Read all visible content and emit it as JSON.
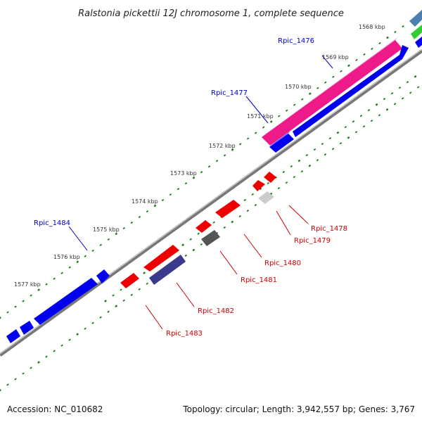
{
  "title": "Ralstonia pickettii 12J chromosome 1, complete sequence",
  "footer": {
    "accession": "Accession: NC_010682",
    "summary": "Topology: circular; Length: 3,942,557 bp; Genes: 3,767"
  },
  "colors": {
    "forward_gene": "#0000ee",
    "reverse_gene": "#ee0000",
    "pink_feature": "#ee1a8a",
    "navy_gene": "#3a3a8c",
    "dark_gene": "#555555",
    "light_gene": "#cccccc",
    "backbone": "#777777",
    "ticks": "#1a7a1a",
    "forward_label": "#0000cc",
    "reverse_label": "#cc0000"
  },
  "ticks": [
    "1568 kbp",
    "1569 kbp",
    "1570 kbp",
    "1571 kbp",
    "1572 kbp",
    "1573 kbp",
    "1574 kbp",
    "1575 kbp",
    "1576 kbp",
    "1577 kbp"
  ],
  "gene_labels": {
    "forward": [
      "Rpic_1476",
      "Rpic_1477",
      "Rpic_1484"
    ],
    "reverse": [
      "Rpic_1478",
      "Rpic_1479",
      "Rpic_1480",
      "Rpic_1481",
      "Rpic_1482",
      "Rpic_1483"
    ]
  }
}
